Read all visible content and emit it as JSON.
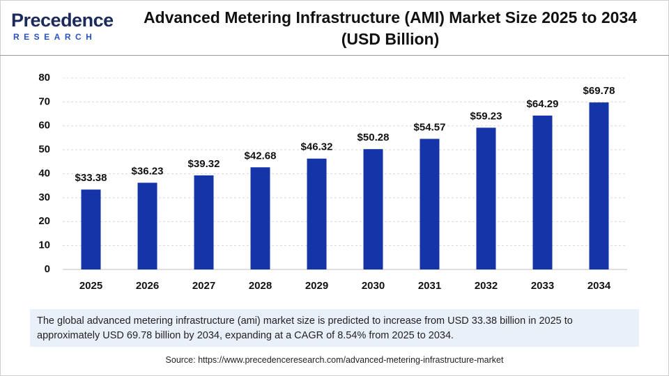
{
  "logo": {
    "name": "Precedence",
    "tagline": "RESEARCH"
  },
  "chart_data": {
    "type": "bar",
    "title": "Advanced Metering Infrastructure (AMI) Market Size 2025 to 2034 (USD Billion)",
    "categories": [
      "2025",
      "2026",
      "2027",
      "2028",
      "2029",
      "2030",
      "2031",
      "2032",
      "2033",
      "2034"
    ],
    "values": [
      33.38,
      36.23,
      39.32,
      42.68,
      46.32,
      50.28,
      54.57,
      59.23,
      64.29,
      69.78
    ],
    "value_labels": [
      "$33.38",
      "$36.23",
      "$39.32",
      "$42.68",
      "$46.32",
      "$50.28",
      "$54.57",
      "$59.23",
      "$64.29",
      "$69.78"
    ],
    "color": "#1534a8",
    "ylim": [
      0,
      80
    ],
    "yticks": [
      0,
      10,
      20,
      30,
      40,
      50,
      60,
      70,
      80
    ],
    "grid": true
  },
  "description": "The global advanced metering infrastructure (ami) market size is predicted to increase from USD 33.38 billion in 2025 to approximately USD 69.78 billion by 2034, expanding at a CAGR of 8.54% from 2025 to 2034.",
  "source": "Source: https://www.precedenceresearch.com/advanced-metering-infrastructure-market"
}
